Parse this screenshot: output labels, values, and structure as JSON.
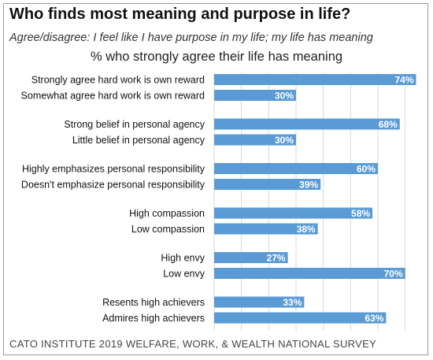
{
  "header": {
    "title": "Who finds most meaning and purpose in life?",
    "subtitle": "Agree/disagree: I feel like I have purpose in my life; my life has meaning"
  },
  "footer": {
    "source": "CATO INSTITUTE 2019 WELFARE, WORK, & WEALTH NATIONAL SURVEY"
  },
  "chart_data": {
    "type": "bar",
    "orientation": "horizontal",
    "title": "% who strongly agree their life has meaning",
    "categories": [
      "Strongly agree hard work is own reward",
      "Somewhat agree hard work is own reward",
      "Strong belief in personal agency",
      "Little belief in personal agency",
      "Highly emphasizes personal responsibility",
      "Doesn't emphasize personal responsibility",
      "High compassion",
      "Low compassion",
      "High envy",
      "Low envy",
      "Resents high achievers",
      "Admires high achievers"
    ],
    "values": [
      74,
      30,
      68,
      30,
      60,
      39,
      58,
      38,
      27,
      70,
      33,
      63
    ],
    "value_labels": [
      "74%",
      "30%",
      "68%",
      "30%",
      "60%",
      "39%",
      "58%",
      "38%",
      "27%",
      "70%",
      "33%",
      "63%"
    ],
    "groups": [
      [
        0,
        1
      ],
      [
        2,
        3
      ],
      [
        4,
        5
      ],
      [
        6,
        7
      ],
      [
        8,
        9
      ],
      [
        10,
        11
      ]
    ],
    "xlim": [
      0,
      75
    ],
    "grid": true,
    "bar_color": "#5b9bd5",
    "grid_color": "#d9d9d9"
  }
}
